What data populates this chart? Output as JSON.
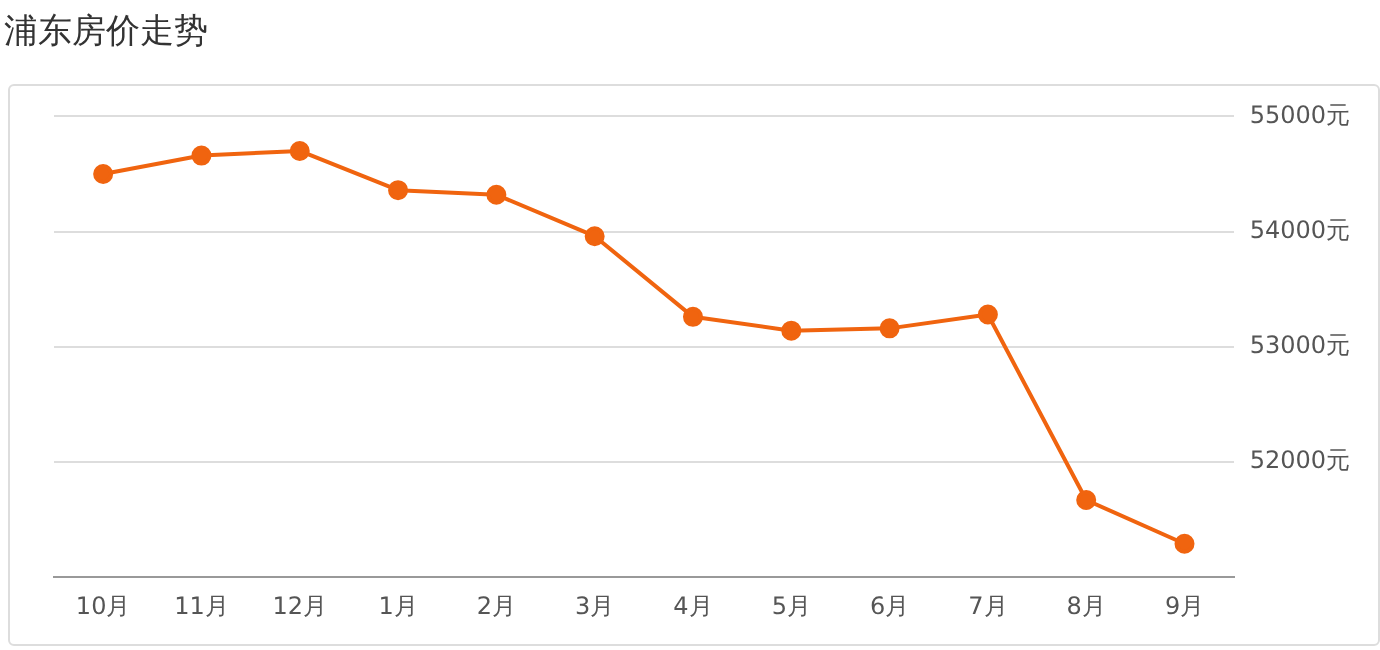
{
  "chart_data": {
    "type": "line",
    "title": "浦东房价走势",
    "categories": [
      "10月",
      "11月",
      "12月",
      "1月",
      "2月",
      "3月",
      "4月",
      "5月",
      "6月",
      "7月",
      "8月",
      "9月"
    ],
    "series": [
      {
        "color": "#f0640f",
        "values": [
          54500,
          54660,
          54700,
          54360,
          54320,
          53960,
          53260,
          53140,
          53160,
          53280,
          51670,
          51290
        ]
      }
    ],
    "ylim": [
      51000,
      55000
    ],
    "yticks": [
      {
        "value": 52000,
        "label": "52000元"
      },
      {
        "value": 53000,
        "label": "53000元"
      },
      {
        "value": 54000,
        "label": "54000元"
      },
      {
        "value": 55000,
        "label": "55000元"
      }
    ],
    "grid": "y",
    "legend": false,
    "marker": "circle",
    "line_style": "solid"
  }
}
